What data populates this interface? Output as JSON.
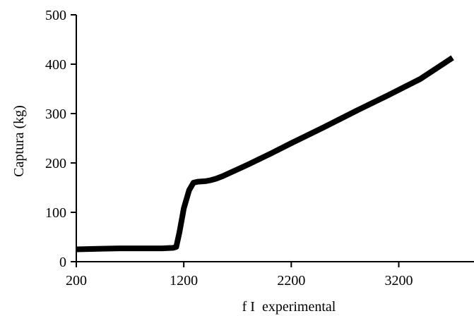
{
  "chart_data": {
    "type": "line",
    "title": "",
    "xlabel": "f I  experimental",
    "ylabel": "Captura (kg)",
    "xlim": [
      200,
      3900
    ],
    "ylim": [
      0,
      500
    ],
    "x_ticks": [
      200,
      1200,
      2200,
      3200
    ],
    "y_ticks": [
      0,
      100,
      200,
      300,
      400,
      500
    ],
    "x_tick_labels": [
      "200",
      "1200",
      "2200",
      "3200"
    ],
    "y_tick_labels": [
      "0",
      "100",
      "200",
      "300",
      "400",
      "500"
    ],
    "grid": false,
    "legend": "none",
    "series": [
      {
        "color": "#000000",
        "x": [
          200,
          400,
          600,
          800,
          1000,
          1100,
          1130,
          1160,
          1200,
          1250,
          1290,
          1330,
          1400,
          1450,
          1500,
          1560,
          1650,
          1800,
          2000,
          2200,
          2500,
          2800,
          3100,
          3400,
          3700
        ],
        "y": [
          25,
          26,
          27,
          27,
          27,
          28,
          30,
          60,
          108,
          145,
          160,
          162,
          163,
          165,
          168,
          173,
          182,
          197,
          218,
          240,
          272,
          305,
          337,
          370,
          413
        ]
      }
    ]
  }
}
